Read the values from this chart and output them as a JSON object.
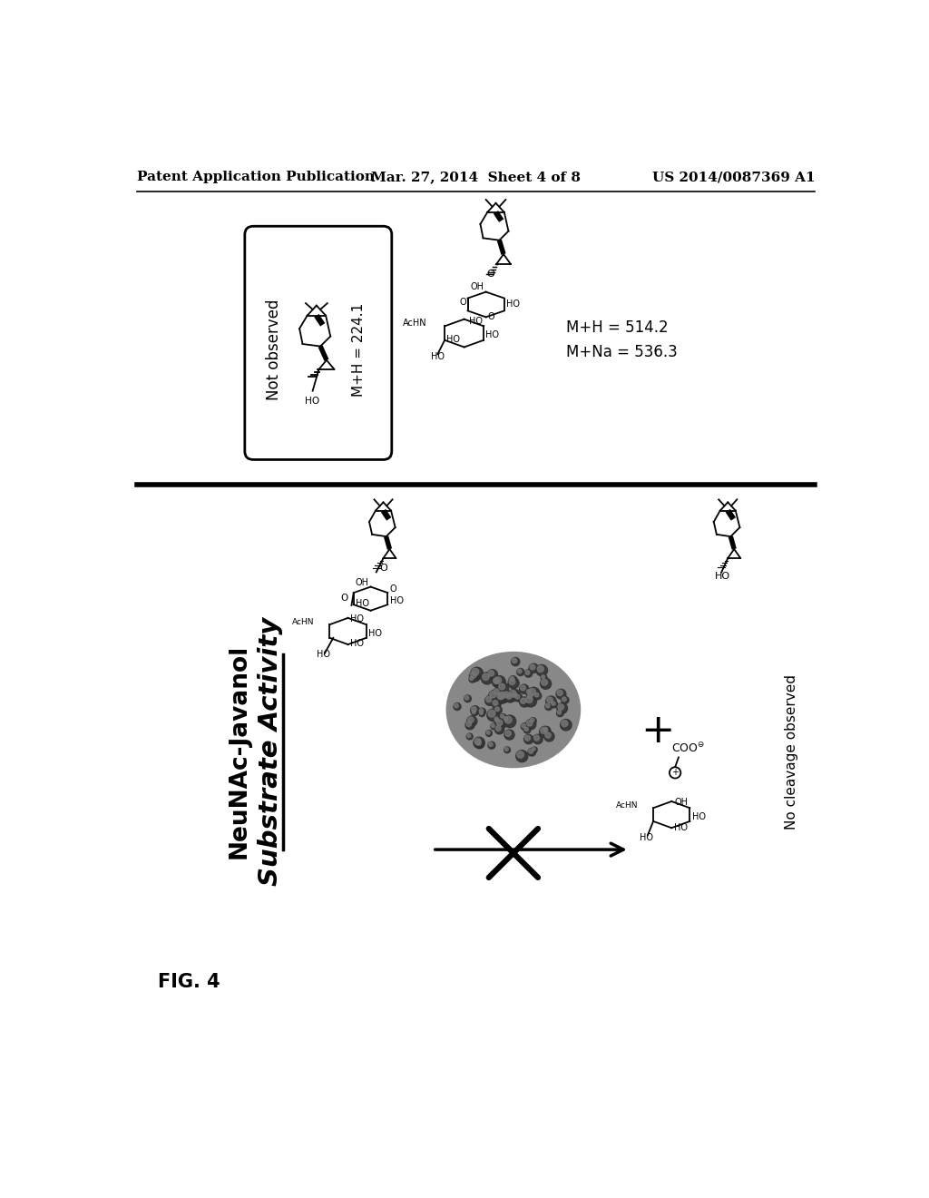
{
  "header_left": "Patent Application Publication",
  "header_center": "Mar. 27, 2014  Sheet 4 of 8",
  "header_right": "US 2014/0087369 A1",
  "fig_label": "FIG. 4",
  "title_line1": "NeuNAc-Javanol",
  "title_line2": "Substrate Activity",
  "top_left_label": "Not observed",
  "top_left_mh": "M+H = 224.1",
  "top_right_mh": "M+H = 514.2",
  "top_right_mna": "M+Na = 536.3",
  "no_cleavage": "No cleavage observed",
  "plus_sign": "+",
  "background_color": "#ffffff",
  "text_color": "#000000",
  "header_fontsize": 11,
  "fig_label_fontsize": 15,
  "title1_fontsize": 20,
  "title2_fontsize": 24
}
